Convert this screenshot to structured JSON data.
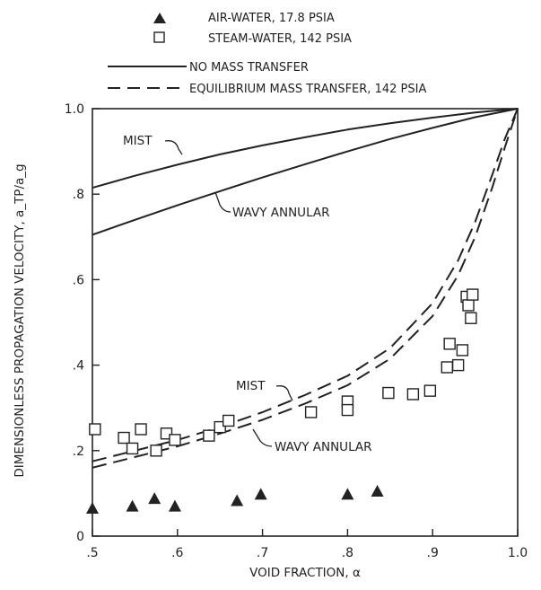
{
  "chart_data": {
    "type": "scatter",
    "xlabel": "VOID FRACTION, α",
    "ylabel": "DIMENSIONLESS PROPAGATION VELOCITY, a_TP/a_g",
    "xlim": [
      0.5,
      1.0
    ],
    "ylim": [
      0,
      1.0
    ],
    "x_ticks": [
      {
        "value": 0.5,
        "label": ".5"
      },
      {
        "value": 0.6,
        "label": ".6"
      },
      {
        "value": 0.7,
        "label": ".7"
      },
      {
        "value": 0.8,
        "label": ".8"
      },
      {
        "value": 0.9,
        "label": ".9"
      },
      {
        "value": 1.0,
        "label": "1.0"
      }
    ],
    "y_ticks": [
      {
        "value": 0,
        "label": "0"
      },
      {
        "value": 0.2,
        "label": ".2"
      },
      {
        "value": 0.4,
        "label": ".4"
      },
      {
        "value": 0.6,
        "label": ".6"
      },
      {
        "value": 0.8,
        "label": ".8"
      },
      {
        "value": 1.0,
        "label": "1.0"
      }
    ],
    "grid": false,
    "legend_position": "top",
    "legend": [
      {
        "marker": "filled-triangle",
        "label": "AIR-WATER, 17.8 PSIA"
      },
      {
        "marker": "open-square",
        "label": "STEAM-WATER, 142 PSIA"
      },
      {
        "marker": "solid-line",
        "label": "NO MASS TRANSFER"
      },
      {
        "marker": "dashed-line",
        "label": "EQUILIBRIUM MASS TRANSFER, 142 PSIA"
      }
    ],
    "annotations": [
      {
        "text": "MIST",
        "attached_to": "no-mass-transfer-mist"
      },
      {
        "text": "WAVY ANNULAR",
        "attached_to": "no-mass-transfer-wavy-annular"
      },
      {
        "text": "MIST",
        "attached_to": "equilibrium-mist"
      },
      {
        "text": "WAVY ANNULAR",
        "attached_to": "equilibrium-wavy-annular"
      }
    ],
    "series": [
      {
        "id": "no-mass-transfer-mist",
        "style": "solid",
        "x": [
          0.5,
          0.55,
          0.6,
          0.65,
          0.7,
          0.75,
          0.8,
          0.85,
          0.9,
          0.95,
          1.0
        ],
        "y": [
          0.815,
          0.843,
          0.869,
          0.893,
          0.914,
          0.933,
          0.951,
          0.966,
          0.979,
          0.991,
          1.0
        ]
      },
      {
        "id": "no-mass-transfer-wavy-annular",
        "style": "solid",
        "x": [
          0.5,
          0.55,
          0.6,
          0.65,
          0.7,
          0.75,
          0.8,
          0.85,
          0.9,
          0.95,
          1.0
        ],
        "y": [
          0.705,
          0.74,
          0.774,
          0.807,
          0.839,
          0.87,
          0.9,
          0.929,
          0.955,
          0.98,
          1.0
        ]
      },
      {
        "id": "equilibrium-mist",
        "style": "dashed",
        "x": [
          0.5,
          0.55,
          0.6,
          0.65,
          0.7,
          0.75,
          0.8,
          0.85,
          0.9,
          0.93,
          0.95,
          0.97,
          0.985,
          1.0
        ],
        "y": [
          0.175,
          0.2,
          0.225,
          0.255,
          0.29,
          0.33,
          0.375,
          0.44,
          0.545,
          0.645,
          0.735,
          0.845,
          0.93,
          1.0
        ]
      },
      {
        "id": "equilibrium-wavy-annular",
        "style": "dashed",
        "x": [
          0.5,
          0.55,
          0.6,
          0.65,
          0.7,
          0.75,
          0.8,
          0.85,
          0.9,
          0.93,
          0.95,
          0.97,
          0.985,
          1.0
        ],
        "y": [
          0.16,
          0.185,
          0.21,
          0.24,
          0.272,
          0.31,
          0.353,
          0.415,
          0.515,
          0.61,
          0.7,
          0.815,
          0.91,
          1.0
        ]
      },
      {
        "id": "air-water",
        "marker": "filled-triangle",
        "x": [
          0.5,
          0.547,
          0.573,
          0.597,
          0.67,
          0.698,
          0.8,
          0.835
        ],
        "y": [
          0.065,
          0.07,
          0.088,
          0.07,
          0.083,
          0.098,
          0.098,
          0.105
        ]
      },
      {
        "id": "steam-water",
        "marker": "open-square",
        "x": [
          0.503,
          0.537,
          0.547,
          0.557,
          0.575,
          0.587,
          0.597,
          0.637,
          0.65,
          0.66,
          0.757,
          0.8,
          0.8,
          0.848,
          0.877,
          0.897,
          0.917,
          0.92,
          0.93,
          0.935,
          0.94,
          0.942,
          0.945,
          0.947
        ],
        "y": [
          0.25,
          0.23,
          0.205,
          0.25,
          0.2,
          0.24,
          0.225,
          0.235,
          0.255,
          0.27,
          0.29,
          0.315,
          0.295,
          0.335,
          0.332,
          0.34,
          0.395,
          0.45,
          0.4,
          0.435,
          0.56,
          0.54,
          0.51,
          0.565
        ]
      }
    ]
  }
}
